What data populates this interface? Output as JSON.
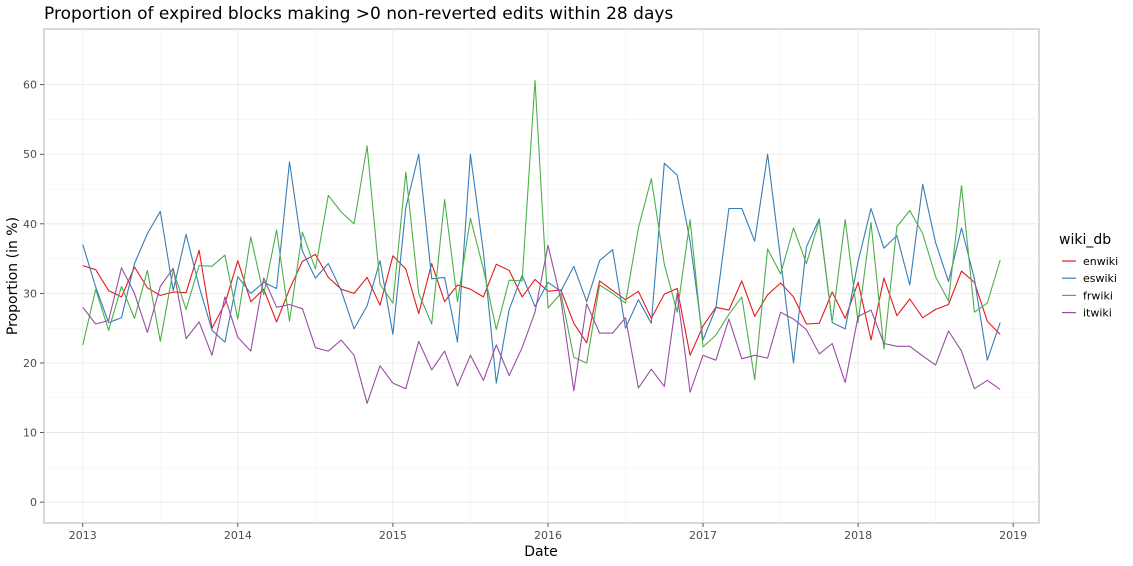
{
  "chart_data": {
    "type": "line",
    "title": "Proportion of expired blocks making >0 non-reverted edits within 28 days",
    "xlabel": "Date",
    "ylabel": "Proportion (in %)",
    "x_ticks": [
      "2013",
      "2014",
      "2015",
      "2016",
      "2017",
      "2018",
      "2019"
    ],
    "y_ticks": [
      0,
      10,
      20,
      30,
      40,
      50,
      60
    ],
    "xlim": [
      "2012-10-01",
      "2019-03-01"
    ],
    "ylim": [
      -3,
      68
    ],
    "grid": true,
    "legend": {
      "title": "wiki_db",
      "position": "right"
    },
    "x_start": "2013-01",
    "x_step": "1 month",
    "series": [
      {
        "name": "enwiki",
        "color": "#e41a1c",
        "values": [
          34.0,
          33.4,
          30.4,
          29.5,
          33.8,
          30.8,
          29.7,
          30.2,
          30.1,
          36.2,
          25.0,
          28.5,
          34.7,
          28.8,
          30.6,
          25.9,
          30.6,
          34.6,
          35.6,
          32.3,
          30.6,
          30.0,
          32.3,
          28.3,
          35.4,
          33.5,
          27.1,
          34.3,
          28.8,
          31.2,
          30.6,
          29.5,
          34.2,
          33.3,
          29.5,
          32.0,
          30.3,
          30.5,
          25.7,
          22.9,
          31.8,
          30.4,
          29.1,
          30.3,
          26.4,
          29.9,
          30.7,
          21.1,
          25.3,
          28.0,
          27.6,
          31.8,
          26.7,
          29.8,
          31.5,
          29.5,
          25.6,
          25.7,
          30.2,
          26.4,
          31.6,
          23.3,
          32.2,
          26.8,
          29.2,
          26.5,
          27.7,
          28.4,
          33.2,
          31.6,
          26.0,
          24.1
        ]
      },
      {
        "name": "eswiki",
        "color": "#377eb8",
        "values": [
          37.0,
          30.9,
          25.8,
          26.5,
          34.3,
          38.6,
          41.8,
          30.4,
          38.5,
          31.0,
          24.7,
          23.0,
          32.4,
          30.0,
          31.6,
          30.7,
          48.9,
          36.1,
          32.2,
          34.3,
          30.4,
          24.9,
          28.2,
          34.7,
          24.1,
          42.3,
          50.0,
          32.1,
          32.3,
          23.0,
          50.0,
          35.9,
          17.1,
          27.7,
          32.6,
          28.1,
          31.6,
          30.3,
          33.9,
          28.8,
          34.7,
          36.3,
          25.0,
          29.1,
          25.7,
          48.7,
          47.0,
          37.5,
          23.3,
          27.9,
          42.2,
          42.2,
          37.5,
          50.0,
          34.9,
          20.0,
          36.7,
          40.7,
          25.8,
          24.9,
          34.6,
          42.2,
          36.5,
          38.3,
          31.2,
          45.7,
          37.3,
          31.7,
          39.4,
          32.1,
          20.4,
          25.8
        ]
      },
      {
        "name": "frwiki",
        "color": "#4daf4a",
        "values": [
          22.6,
          30.6,
          24.7,
          31.0,
          26.4,
          33.3,
          23.1,
          33.3,
          27.7,
          34.0,
          33.9,
          35.5,
          26.3,
          38.1,
          29.8,
          39.1,
          26.0,
          38.8,
          33.5,
          44.1,
          41.7,
          40.0,
          51.2,
          31.3,
          28.6,
          47.4,
          30.0,
          25.6,
          43.5,
          28.8,
          40.8,
          33.5,
          24.8,
          31.9,
          31.8,
          60.6,
          27.9,
          30.0,
          20.8,
          20.0,
          31.2,
          30.0,
          28.6,
          39.4,
          46.5,
          34.2,
          27.3,
          40.6,
          22.3,
          24.0,
          27.0,
          29.5,
          17.6,
          36.4,
          32.8,
          39.4,
          34.3,
          40.5,
          25.9,
          40.6,
          25.8,
          40.2,
          22.0,
          39.6,
          41.9,
          38.6,
          32.4,
          28.9,
          45.5,
          27.3,
          28.6,
          34.8
        ]
      },
      {
        "name": "itwiki",
        "color": "#984ea3",
        "values": [
          28.0,
          25.6,
          26.1,
          33.7,
          30.0,
          24.4,
          31.0,
          33.6,
          23.5,
          25.9,
          21.1,
          29.5,
          23.7,
          21.7,
          32.2,
          28.0,
          28.4,
          27.8,
          22.2,
          21.7,
          23.3,
          21.1,
          14.2,
          19.6,
          17.1,
          16.3,
          23.1,
          19.0,
          21.7,
          16.7,
          21.1,
          17.5,
          22.6,
          18.2,
          22.2,
          27.3,
          36.9,
          29.1,
          16.0,
          28.5,
          24.3,
          24.3,
          26.5,
          16.4,
          19.1,
          16.6,
          30.0,
          15.8,
          21.1,
          20.4,
          26.3,
          20.6,
          21.1,
          20.7,
          27.3,
          26.3,
          24.8,
          21.3,
          22.8,
          17.2,
          26.7,
          27.6,
          22.8,
          22.4,
          22.4,
          21.0,
          19.7,
          24.6,
          21.7,
          16.3,
          17.5,
          16.2
        ]
      }
    ]
  }
}
